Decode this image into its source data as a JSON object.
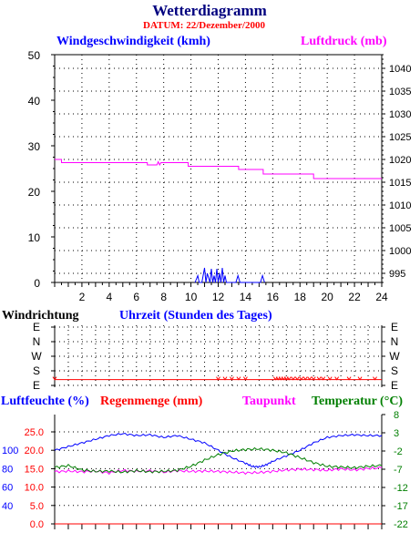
{
  "title": "Wetterdiagramm",
  "subtitle": "DATUM: 22/Dezember/2000",
  "colors": {
    "title": "#00007f",
    "subtitle": "#ff0000",
    "wind": "#0000ff",
    "pressure": "#ff00ff",
    "humidity": "#0000ff",
    "rain": "#ff0000",
    "dewpoint": "#ff00ff",
    "temperature": "#007f00",
    "axis": "#000000"
  },
  "chart_data": [
    {
      "type": "line",
      "name": "wind-pressure",
      "left_axis_label": "Windgeschwindigkeit (kmh)",
      "right_axis_label": "Luftdruck (mb)",
      "xlabel": "Uhrzeit (Stunden des Tages)",
      "xlim": [
        0,
        24
      ],
      "x_ticks": [
        "2",
        "4",
        "6",
        "8",
        "10",
        "12",
        "14",
        "16",
        "18",
        "20",
        "22",
        "24"
      ],
      "left_ylim": [
        0,
        50
      ],
      "left_ticks": [
        "0",
        "10",
        "20",
        "30",
        "40",
        "50"
      ],
      "right_ylim": [
        993,
        1043
      ],
      "right_ticks": [
        "995",
        "1000",
        "1005",
        "1010",
        "1015",
        "1020",
        "1025",
        "1030",
        "1035",
        "1040"
      ],
      "grid": true,
      "series": [
        {
          "name": "Luftdruck (mb)",
          "axis": "right",
          "x": [
            0,
            0.5,
            0.5,
            6.8,
            6.8,
            7.5,
            7.6,
            7.7,
            7.8,
            9.8,
            9.8,
            13.5,
            13.5,
            15.3,
            15.3,
            19.0,
            19.0,
            24
          ],
          "y": [
            1020,
            1020,
            1019.3,
            1019.3,
            1018.8,
            1018.8,
            1019.5,
            1018.8,
            1019.3,
            1019.3,
            1018.5,
            1018.5,
            1017.8,
            1017.8,
            1016.8,
            1016.8,
            1015.8,
            1015.8
          ]
        },
        {
          "name": "Windgeschwindigkeit (kmh)",
          "axis": "left",
          "x": [
            10.3,
            10.5,
            10.6,
            10.8,
            11.0,
            11.1,
            11.2,
            11.4,
            11.5,
            11.6,
            11.7,
            11.8,
            11.9,
            12.0,
            12.1,
            12.2,
            12.3,
            12.4,
            12.5,
            12.6,
            13.3,
            13.45,
            13.6,
            15.1,
            15.25,
            15.4
          ],
          "y": [
            0,
            1.5,
            0,
            0,
            3.2,
            0,
            2.0,
            0,
            3.0,
            0,
            1.5,
            0,
            3.0,
            0,
            2.0,
            0,
            3.2,
            0,
            1.5,
            0,
            0,
            1.5,
            0,
            0,
            1.5,
            0
          ]
        }
      ]
    },
    {
      "type": "scatter",
      "name": "Windrichtung",
      "title": "Windrichtung",
      "xlim": [
        0,
        24
      ],
      "categories": [
        "E",
        "S",
        "W",
        "N",
        "E"
      ],
      "series": [
        {
          "name": "Windrichtung",
          "x": [
            0,
            12.0,
            12.5,
            13.0,
            13.5,
            14.0,
            16.2,
            16.4,
            16.6,
            16.8,
            17.0,
            17.2,
            17.5,
            17.8,
            18.1,
            18.4,
            18.7,
            19.0,
            19.4,
            19.7,
            20.2,
            20.7,
            21.6,
            22.4,
            23.5
          ],
          "y": [
            0.4,
            0.4,
            0.4,
            0.4,
            0.4,
            0.4,
            0.4,
            0.4,
            0.4,
            0.4,
            0.4,
            0.4,
            0.4,
            0.4,
            0.4,
            0.4,
            0.4,
            0.4,
            0.4,
            0.4,
            0.4,
            0.4,
            0.4,
            0.4,
            0.4
          ]
        }
      ]
    },
    {
      "type": "line",
      "name": "humidity-rain-temperature",
      "labels": [
        "Luftfeuchte (%)",
        "Regenmenge (mm)",
        "Taupunkt",
        "Temperatur (°C)"
      ],
      "xlim": [
        0,
        24
      ],
      "humidity_ticks": [
        "40",
        "60",
        "80",
        "100"
      ],
      "rain_ticks": [
        "0.0",
        "5.0",
        "10.0",
        "15.0",
        "20.0",
        "25.0"
      ],
      "rain_ylim": [
        0,
        25
      ],
      "temperature_ticks": [
        "-22",
        "-17",
        "-12",
        "-7",
        "-2",
        "3",
        "8"
      ],
      "temperature_ylim": [
        -22,
        8
      ],
      "grid": true,
      "series": [
        {
          "name": "Luftfeuchte (%)",
          "axis": "rain",
          "x": [
            0,
            1,
            2,
            3,
            4,
            5,
            6,
            7,
            8,
            9,
            10,
            11,
            12,
            13,
            14,
            14.5,
            15,
            15.5,
            16,
            17,
            18,
            19,
            20,
            21,
            22,
            23,
            24
          ],
          "y": [
            20,
            21,
            22,
            23,
            24,
            24.5,
            24,
            24.2,
            23.5,
            24,
            23,
            22,
            20,
            18,
            16.5,
            15.6,
            15.5,
            16,
            17,
            18.5,
            20,
            22,
            23.5,
            24,
            24.2,
            24,
            24
          ]
        },
        {
          "name": "Taupunkt",
          "axis": "temperature",
          "x": [
            0,
            1,
            2,
            3,
            4,
            5,
            6,
            7,
            8,
            9,
            10,
            11,
            12,
            13,
            14,
            15,
            16,
            17,
            18,
            19,
            20,
            21,
            22,
            23,
            24
          ],
          "y": [
            -7.7,
            -7.5,
            -7.7,
            -7.5,
            -8.0,
            -7.3,
            -7.6,
            -7.4,
            -7.8,
            -7.4,
            -7.6,
            -7.5,
            -7.6,
            -7.8,
            -8.0,
            -7.9,
            -7.6,
            -7.2,
            -7.0,
            -7.1,
            -7.3,
            -6.9,
            -7.2,
            -6.8,
            -6.6
          ]
        },
        {
          "name": "Temperatur (°C)",
          "axis": "temperature",
          "x": [
            0,
            1,
            2,
            3,
            4,
            5,
            6,
            7,
            8,
            9,
            10,
            11,
            12,
            13,
            14,
            15,
            16,
            17,
            18,
            19,
            20,
            21,
            22,
            23,
            24
          ],
          "y": [
            -6.5,
            -6.0,
            -7.2,
            -7.6,
            -7.5,
            -7.8,
            -7.4,
            -7.7,
            -7.6,
            -7.3,
            -6.2,
            -4.5,
            -3.0,
            -2.0,
            -1.6,
            -1.4,
            -1.8,
            -2.5,
            -3.8,
            -5.2,
            -6.2,
            -6.4,
            -6.6,
            -6.2,
            -6.0
          ]
        },
        {
          "name": "Regenmenge (mm)",
          "axis": "rain",
          "x": [
            0,
            24
          ],
          "y": [
            0,
            0
          ]
        }
      ]
    }
  ]
}
